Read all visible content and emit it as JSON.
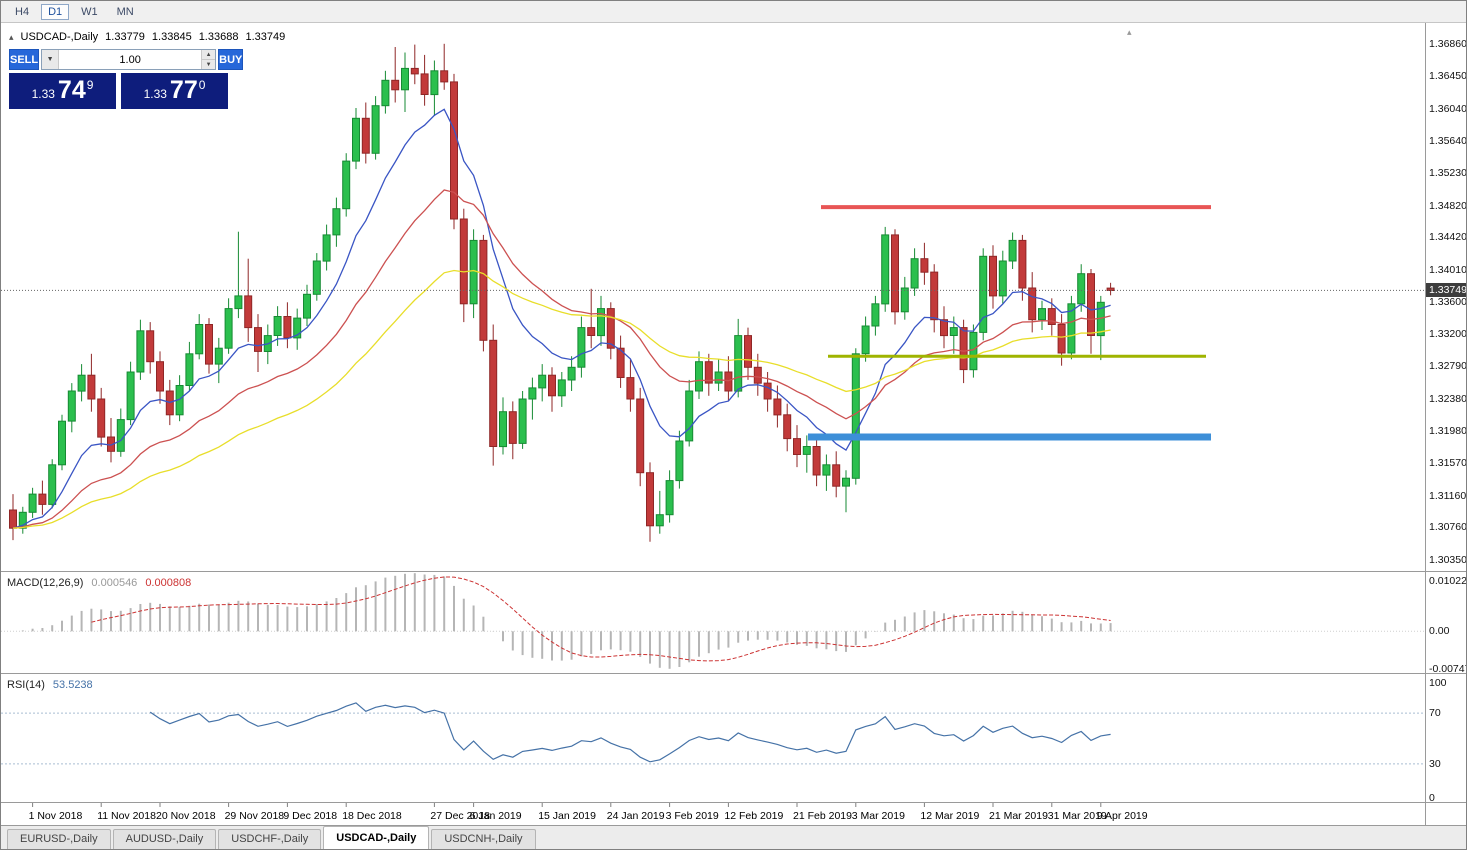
{
  "toolbar": {
    "timeframes": [
      {
        "label": "H4",
        "active": false
      },
      {
        "label": "D1",
        "active": true
      },
      {
        "label": "W1",
        "active": false
      },
      {
        "label": "MN",
        "active": false
      }
    ]
  },
  "chart": {
    "symbol_label": "USDCAD-,Daily",
    "ohlc": {
      "open": "1.33779",
      "high": "1.33845",
      "low": "1.33688",
      "close": "1.33749"
    },
    "current_price": "1.33749",
    "price_axis_labels": [
      "1.36860",
      "1.36450",
      "1.36040",
      "1.35640",
      "1.35230",
      "1.34820",
      "1.34420",
      "1.34010",
      "1.33600",
      "1.33200",
      "1.32790",
      "1.32380",
      "1.31980",
      "1.31570",
      "1.31160",
      "1.30760",
      "1.30350"
    ]
  },
  "trade_panel": {
    "sell_label": "SELL",
    "buy_label": "BUY",
    "volume": "1.00",
    "sell_price": {
      "prefix": "1.33",
      "big": "74",
      "sup": "9"
    },
    "buy_price": {
      "prefix": "1.33",
      "big": "77",
      "sup": "0"
    },
    "icons": {
      "dropdown": "▼",
      "step_up": "▲",
      "step_down": "▼"
    }
  },
  "indicators": {
    "macd": {
      "name": "MACD(12,26,9)",
      "value_main": "0.000546",
      "value_signal": "0.000808",
      "axis_labels": [
        {
          "text": "0.010229",
          "value": 0.010229
        },
        {
          "text": "0.00",
          "value": 0
        },
        {
          "text": "-0.007477",
          "value": -0.007477
        }
      ]
    },
    "rsi": {
      "name": "RSI(14)",
      "value": "53.5238",
      "axis_labels": [
        {
          "text": "100",
          "value": 100
        },
        {
          "text": "70",
          "value": 70
        },
        {
          "text": "30",
          "value": 30
        },
        {
          "text": "0",
          "value": 0
        }
      ],
      "levels": [
        70,
        30
      ]
    }
  },
  "time_axis": [
    {
      "label": "1 Nov 2018",
      "i": 2
    },
    {
      "label": "11 Nov 2018",
      "i": 9
    },
    {
      "label": "20 Nov 2018",
      "i": 15
    },
    {
      "label": "29 Nov 2018",
      "i": 22
    },
    {
      "label": "9 Dec 2018",
      "i": 28
    },
    {
      "label": "18 Dec 2018",
      "i": 34
    },
    {
      "label": "27 Dec 2018",
      "i": 43
    },
    {
      "label": "6 Jan 2019",
      "i": 47
    },
    {
      "label": "15 Jan 2019",
      "i": 54
    },
    {
      "label": "24 Jan 2019",
      "i": 61
    },
    {
      "label": "3 Feb 2019",
      "i": 67
    },
    {
      "label": "12 Feb 2019",
      "i": 73
    },
    {
      "label": "21 Feb 2019",
      "i": 80
    },
    {
      "label": "3 Mar 2019",
      "i": 86
    },
    {
      "label": "12 Mar 2019",
      "i": 93
    },
    {
      "label": "21 Mar 2019",
      "i": 100
    },
    {
      "label": "31 Mar 2019",
      "i": 106
    },
    {
      "label": "9 Apr 2019",
      "i": 111
    }
  ],
  "bottom_tabs": [
    {
      "label": "EURUSD-,Daily",
      "active": false
    },
    {
      "label": "AUDUSD-,Daily",
      "active": false
    },
    {
      "label": "USDCHF-,Daily",
      "active": false
    },
    {
      "label": "USDCAD-,Daily",
      "active": true
    },
    {
      "label": "USDCNH-,Daily",
      "active": false
    }
  ],
  "colors": {
    "up": "#2bbf4e",
    "up_border": "#168a33",
    "down": "#c23a3a",
    "down_border": "#8f2626",
    "ma_fast": "#3a55c4",
    "ma_mid": "#cc5151",
    "ma_slow": "#e8de2a",
    "macd_hist": "#b5b5b5",
    "macd_signal": "#cc3333",
    "rsi_line": "#4572a7",
    "rsi_levels": "#a9bdd2",
    "level_red": "#e85555",
    "level_olive": "#9fb400",
    "level_blue": "#3d8fd8",
    "bid_line": "#666666"
  },
  "chart_data": {
    "type": "candlestick",
    "symbol": "USDCAD",
    "timeframe": "Daily",
    "price_domain": [
      1.3021,
      1.3711
    ],
    "macd_domain": [
      -0.0075,
      0.0103
    ],
    "rsi_period": 14,
    "macd_settings": {
      "fast": 12,
      "slow": 26,
      "signal": 9
    },
    "moving_averages": [
      {
        "type": "ema",
        "period": 10,
        "color_key": "ma_fast"
      },
      {
        "type": "ema",
        "period": 24,
        "color_key": "ma_mid"
      },
      {
        "type": "ema",
        "period": 45,
        "color_key": "ma_slow"
      }
    ],
    "hlines": [
      {
        "price": 1.348,
        "color_key": "level_red",
        "width": 4,
        "x1_frac": 0.576,
        "x2_frac": 0.85
      },
      {
        "price": 1.3292,
        "color_key": "level_olive",
        "width": 3,
        "x1_frac": 0.581,
        "x2_frac": 0.846
      },
      {
        "price": 1.319,
        "color_key": "level_blue",
        "width": 7,
        "x1_frac": 0.567,
        "x2_frac": 0.85
      }
    ],
    "candles": [
      [
        1.3098,
        1.3118,
        1.306,
        1.3075
      ],
      [
        1.3075,
        1.3102,
        1.3068,
        1.3095
      ],
      [
        1.3095,
        1.3126,
        1.3088,
        1.3118
      ],
      [
        1.3118,
        1.3135,
        1.3092,
        1.3105
      ],
      [
        1.3105,
        1.3162,
        1.31,
        1.3155
      ],
      [
        1.3155,
        1.3218,
        1.3148,
        1.321
      ],
      [
        1.321,
        1.3258,
        1.3196,
        1.3248
      ],
      [
        1.3248,
        1.3282,
        1.3235,
        1.3268
      ],
      [
        1.3268,
        1.3295,
        1.3222,
        1.3238
      ],
      [
        1.3238,
        1.3252,
        1.3178,
        1.319
      ],
      [
        1.319,
        1.3214,
        1.3158,
        1.3172
      ],
      [
        1.3172,
        1.3226,
        1.3165,
        1.3212
      ],
      [
        1.3212,
        1.3285,
        1.3205,
        1.3272
      ],
      [
        1.3272,
        1.3338,
        1.3262,
        1.3324
      ],
      [
        1.3324,
        1.3335,
        1.327,
        1.3285
      ],
      [
        1.3285,
        1.3298,
        1.3232,
        1.3248
      ],
      [
        1.3248,
        1.3262,
        1.3205,
        1.3218
      ],
      [
        1.3218,
        1.3268,
        1.321,
        1.3255
      ],
      [
        1.3255,
        1.331,
        1.3248,
        1.3295
      ],
      [
        1.3295,
        1.3345,
        1.3288,
        1.3332
      ],
      [
        1.3332,
        1.334,
        1.327,
        1.3282
      ],
      [
        1.3282,
        1.3315,
        1.3258,
        1.3302
      ],
      [
        1.3302,
        1.3365,
        1.3295,
        1.3352
      ],
      [
        1.3352,
        1.3449,
        1.334,
        1.3368
      ],
      [
        1.3368,
        1.3415,
        1.331,
        1.3328
      ],
      [
        1.3328,
        1.3345,
        1.3272,
        1.3298
      ],
      [
        1.3298,
        1.3332,
        1.3282,
        1.3318
      ],
      [
        1.3318,
        1.3355,
        1.3305,
        1.3342
      ],
      [
        1.3342,
        1.336,
        1.3302,
        1.3315
      ],
      [
        1.3315,
        1.3352,
        1.33,
        1.334
      ],
      [
        1.334,
        1.3382,
        1.333,
        1.337
      ],
      [
        1.337,
        1.3422,
        1.3362,
        1.3412
      ],
      [
        1.3412,
        1.3458,
        1.34,
        1.3445
      ],
      [
        1.3445,
        1.3492,
        1.343,
        1.3478
      ],
      [
        1.3478,
        1.3548,
        1.3468,
        1.3538
      ],
      [
        1.3538,
        1.3605,
        1.3528,
        1.3592
      ],
      [
        1.3592,
        1.3612,
        1.3535,
        1.3548
      ],
      [
        1.3548,
        1.362,
        1.354,
        1.3608
      ],
      [
        1.3608,
        1.3652,
        1.3598,
        1.364
      ],
      [
        1.364,
        1.3682,
        1.3612,
        1.3628
      ],
      [
        1.3628,
        1.3675,
        1.36,
        1.3655
      ],
      [
        1.3655,
        1.3685,
        1.3635,
        1.3648
      ],
      [
        1.3648,
        1.3672,
        1.3608,
        1.3622
      ],
      [
        1.3622,
        1.3665,
        1.3595,
        1.3652
      ],
      [
        1.3652,
        1.3686,
        1.3628,
        1.3638
      ],
      [
        1.3638,
        1.3648,
        1.3452,
        1.3465
      ],
      [
        1.3465,
        1.3478,
        1.3335,
        1.3358
      ],
      [
        1.3358,
        1.3452,
        1.334,
        1.3438
      ],
      [
        1.3438,
        1.3445,
        1.3298,
        1.3312
      ],
      [
        1.3312,
        1.3332,
        1.3154,
        1.3178
      ],
      [
        1.3178,
        1.324,
        1.3168,
        1.3222
      ],
      [
        1.3222,
        1.3235,
        1.3162,
        1.3182
      ],
      [
        1.3182,
        1.3248,
        1.3175,
        1.3238
      ],
      [
        1.3238,
        1.3265,
        1.3212,
        1.3252
      ],
      [
        1.3252,
        1.3282,
        1.3235,
        1.3268
      ],
      [
        1.3268,
        1.3278,
        1.3222,
        1.3242
      ],
      [
        1.3242,
        1.3272,
        1.3228,
        1.3262
      ],
      [
        1.3262,
        1.3292,
        1.3248,
        1.3278
      ],
      [
        1.3278,
        1.3342,
        1.3265,
        1.3328
      ],
      [
        1.3328,
        1.3377,
        1.3302,
        1.3318
      ],
      [
        1.3318,
        1.3368,
        1.3305,
        1.3352
      ],
      [
        1.3352,
        1.336,
        1.3288,
        1.3302
      ],
      [
        1.3302,
        1.3318,
        1.3252,
        1.3265
      ],
      [
        1.3265,
        1.3288,
        1.3222,
        1.3238
      ],
      [
        1.3238,
        1.3252,
        1.3128,
        1.3145
      ],
      [
        1.3145,
        1.3158,
        1.3058,
        1.3078
      ],
      [
        1.3078,
        1.3122,
        1.3068,
        1.3092
      ],
      [
        1.3092,
        1.3148,
        1.3082,
        1.3135
      ],
      [
        1.3135,
        1.3198,
        1.3125,
        1.3185
      ],
      [
        1.3185,
        1.3262,
        1.3178,
        1.3248
      ],
      [
        1.3248,
        1.3298,
        1.3238,
        1.3285
      ],
      [
        1.3285,
        1.3295,
        1.3242,
        1.3258
      ],
      [
        1.3258,
        1.3288,
        1.3248,
        1.3272
      ],
      [
        1.3272,
        1.3292,
        1.3235,
        1.3248
      ],
      [
        1.3248,
        1.3339,
        1.324,
        1.3318
      ],
      [
        1.3318,
        1.3328,
        1.3262,
        1.3278
      ],
      [
        1.3278,
        1.3295,
        1.3242,
        1.3258
      ],
      [
        1.3258,
        1.3272,
        1.3222,
        1.3238
      ],
      [
        1.3238,
        1.3255,
        1.3202,
        1.3218
      ],
      [
        1.3218,
        1.3232,
        1.3172,
        1.3188
      ],
      [
        1.3188,
        1.3205,
        1.3152,
        1.3168
      ],
      [
        1.3168,
        1.3192,
        1.3145,
        1.3178
      ],
      [
        1.3178,
        1.3188,
        1.3128,
        1.3142
      ],
      [
        1.3142,
        1.3168,
        1.3122,
        1.3155
      ],
      [
        1.3155,
        1.3172,
        1.3114,
        1.3128
      ],
      [
        1.3128,
        1.3148,
        1.3095,
        1.3138
      ],
      [
        1.3138,
        1.3302,
        1.313,
        1.3295
      ],
      [
        1.3295,
        1.3342,
        1.3285,
        1.333
      ],
      [
        1.333,
        1.3368,
        1.3318,
        1.3358
      ],
      [
        1.3358,
        1.3455,
        1.3348,
        1.3445
      ],
      [
        1.3445,
        1.3452,
        1.3332,
        1.3348
      ],
      [
        1.3348,
        1.3392,
        1.3338,
        1.3378
      ],
      [
        1.3378,
        1.3428,
        1.3368,
        1.3415
      ],
      [
        1.3415,
        1.3435,
        1.3382,
        1.3398
      ],
      [
        1.3398,
        1.3408,
        1.3322,
        1.3338
      ],
      [
        1.3338,
        1.3355,
        1.3302,
        1.3318
      ],
      [
        1.3318,
        1.3342,
        1.3295,
        1.3328
      ],
      [
        1.3328,
        1.3338,
        1.3258,
        1.3275
      ],
      [
        1.3275,
        1.3332,
        1.3265,
        1.3322
      ],
      [
        1.3322,
        1.3428,
        1.3312,
        1.3418
      ],
      [
        1.3418,
        1.3432,
        1.3352,
        1.3368
      ],
      [
        1.3368,
        1.3425,
        1.3358,
        1.3412
      ],
      [
        1.3412,
        1.3448,
        1.3402,
        1.3438
      ],
      [
        1.3438,
        1.3445,
        1.3362,
        1.3378
      ],
      [
        1.3378,
        1.3398,
        1.3322,
        1.3338
      ],
      [
        1.3338,
        1.3362,
        1.3325,
        1.3352
      ],
      [
        1.3352,
        1.3365,
        1.3318,
        1.3332
      ],
      [
        1.3332,
        1.3345,
        1.328,
        1.3296
      ],
      [
        1.3296,
        1.3368,
        1.3288,
        1.3358
      ],
      [
        1.3358,
        1.3408,
        1.3348,
        1.3396
      ],
      [
        1.3396,
        1.3402,
        1.3295,
        1.3318
      ],
      [
        1.3318,
        1.3368,
        1.3287,
        1.336
      ],
      [
        1.33779,
        1.33845,
        1.33688,
        1.33749
      ]
    ]
  }
}
